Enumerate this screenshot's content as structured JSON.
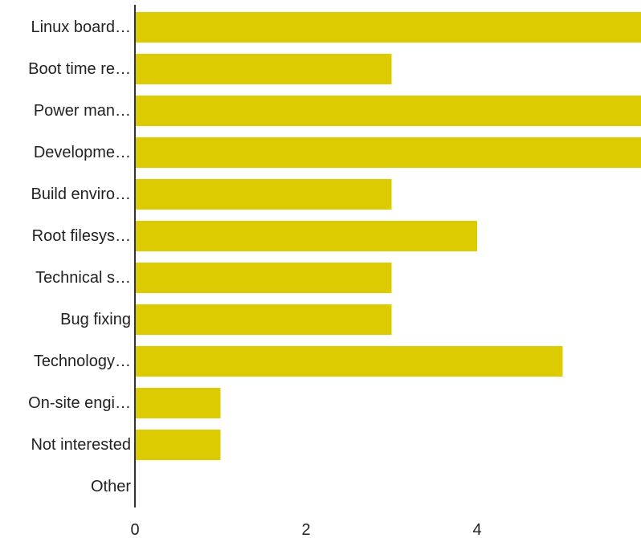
{
  "chart_data": {
    "type": "bar",
    "orientation": "horizontal",
    "categories": [
      "Linux board…",
      "Boot time re…",
      "Power man…",
      "Developme…",
      "Build enviro…",
      "Root filesys…",
      "Technical s…",
      "Bug fixing",
      "Technology…",
      "On-site engi…",
      "Not interested",
      "Other"
    ],
    "values": [
      6,
      3,
      6,
      6,
      3,
      4,
      3,
      3,
      5,
      1,
      1,
      0
    ],
    "xlim": [
      0,
      5.9
    ],
    "xticks": [
      0,
      2,
      4
    ],
    "grid": false,
    "legend": "none",
    "colors": {
      "bar": "#dccb00",
      "axis": "#333333",
      "text": "#222222"
    }
  }
}
